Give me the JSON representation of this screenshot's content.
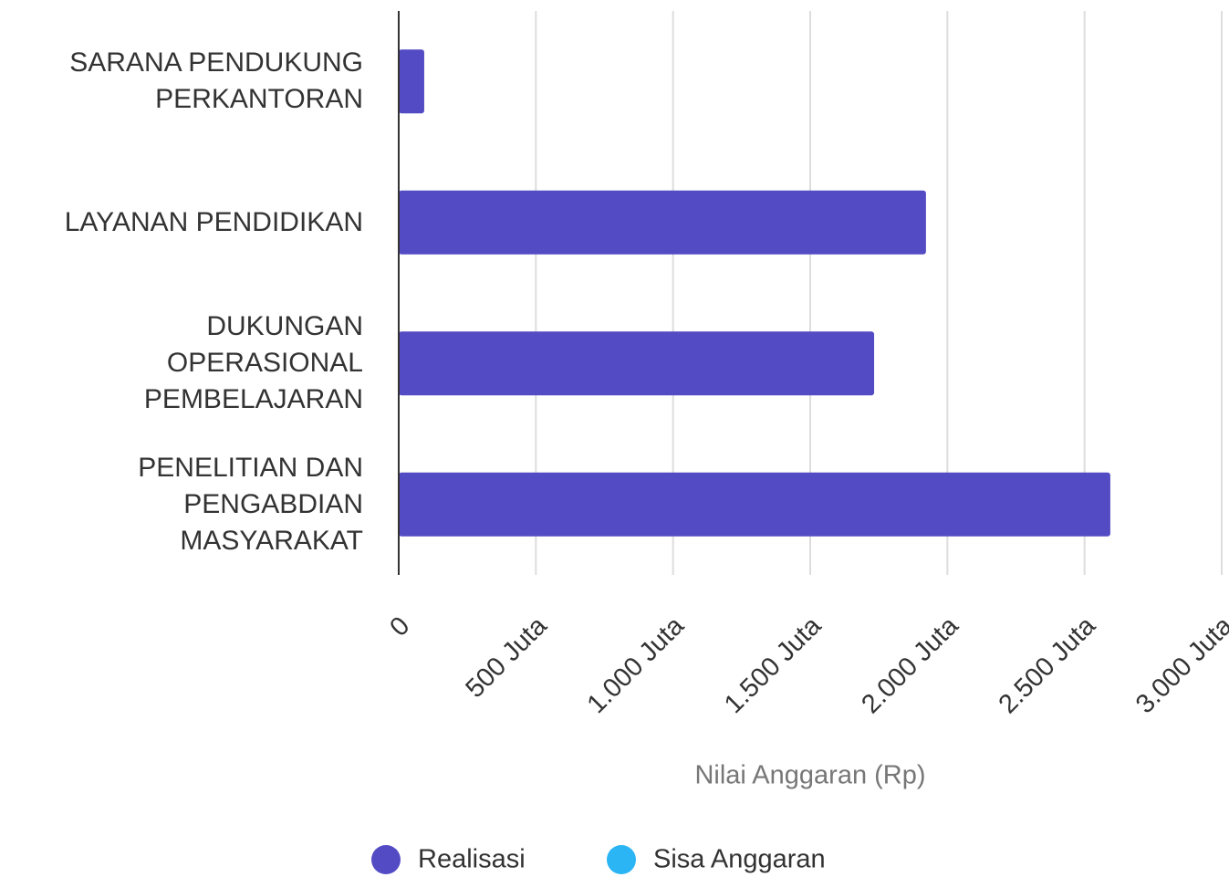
{
  "chart_data": {
    "type": "bar",
    "stacked": true,
    "orientation": "horizontal",
    "categories": [
      "SARANA PENDUKUNG PERKANTORAN",
      "LAYANAN PENDIDIKAN",
      "DUKUNGAN OPERASIONAL PEMBELAJARAN",
      "PENELITIAN DAN PENGABDIAN MASYARAKAT"
    ],
    "series": [
      {
        "name": "Realisasi",
        "color": "#534bc4",
        "values": [
          93,
          1922,
          1733,
          2594
        ]
      },
      {
        "name": "Sisa Anggaran",
        "color": "#2bb5f5",
        "values": [
          0,
          0,
          0,
          0
        ]
      }
    ],
    "xlabel": "Nilai Anggaran (Rp)",
    "xlim": [
      0,
      3000
    ],
    "xticks": [
      0,
      {
        "value": 500,
        "label": "500 Juta"
      },
      {
        "value": 1000,
        "label": "1.000 Juta"
      },
      {
        "value": 1500,
        "label": "1.500 Juta"
      },
      {
        "value": 2000,
        "label": "2.000 Juta"
      },
      {
        "value": 2500,
        "label": "2.500 Juta"
      },
      {
        "value": 3000,
        "label": "3.000 Juta"
      }
    ],
    "grid": true,
    "legend": "bottom"
  }
}
